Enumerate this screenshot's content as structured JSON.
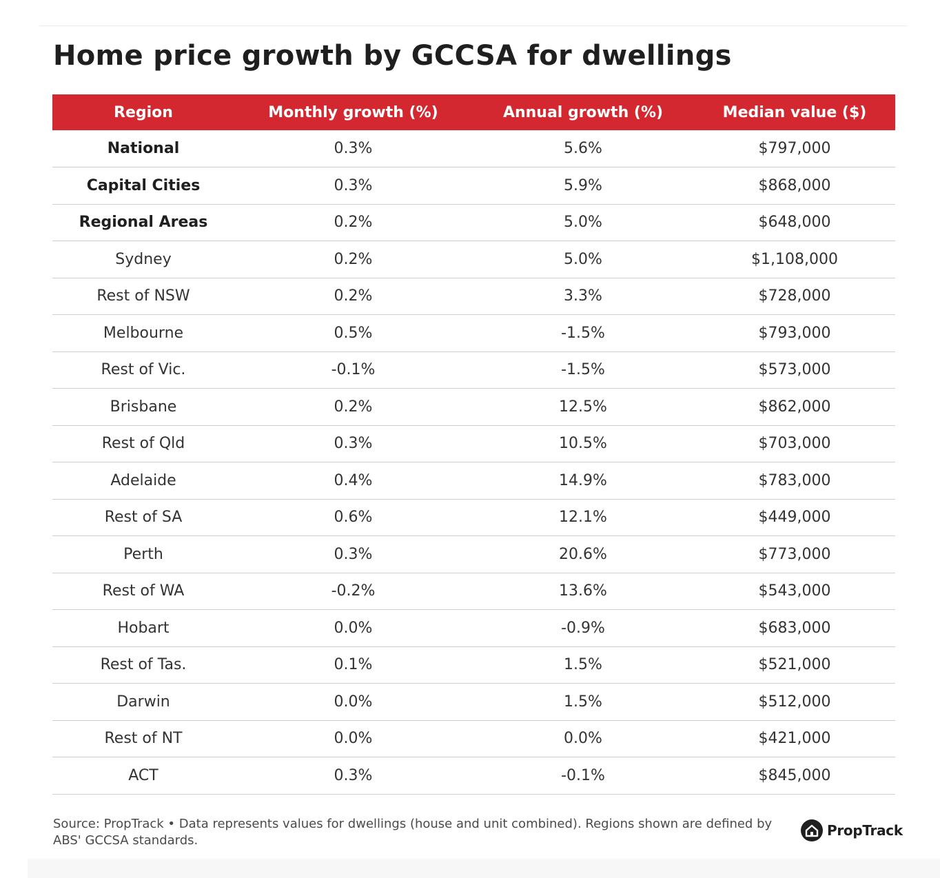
{
  "title": "Home price growth by GCCSA for dwellings",
  "chart_data": {
    "type": "table",
    "title": "Home price growth by GCCSA for dwellings",
    "columns": [
      "Region",
      "Monthly growth (%)",
      "Annual growth (%)",
      "Median value ($)"
    ],
    "rows": [
      {
        "region": "National",
        "monthly": "0.3%",
        "annual": "5.6%",
        "median": "$797,000",
        "bold": true
      },
      {
        "region": "Capital Cities",
        "monthly": "0.3%",
        "annual": "5.9%",
        "median": "$868,000",
        "bold": true
      },
      {
        "region": "Regional Areas",
        "monthly": "0.2%",
        "annual": "5.0%",
        "median": "$648,000",
        "bold": true
      },
      {
        "region": "Sydney",
        "monthly": "0.2%",
        "annual": "5.0%",
        "median": "$1,108,000",
        "bold": false
      },
      {
        "region": "Rest of NSW",
        "monthly": "0.2%",
        "annual": "3.3%",
        "median": "$728,000",
        "bold": false
      },
      {
        "region": "Melbourne",
        "monthly": "0.5%",
        "annual": "-1.5%",
        "median": "$793,000",
        "bold": false
      },
      {
        "region": "Rest of Vic.",
        "monthly": "-0.1%",
        "annual": "-1.5%",
        "median": "$573,000",
        "bold": false
      },
      {
        "region": "Brisbane",
        "monthly": "0.2%",
        "annual": "12.5%",
        "median": "$862,000",
        "bold": false
      },
      {
        "region": "Rest of Qld",
        "monthly": "0.3%",
        "annual": "10.5%",
        "median": "$703,000",
        "bold": false
      },
      {
        "region": "Adelaide",
        "monthly": "0.4%",
        "annual": "14.9%",
        "median": "$783,000",
        "bold": false
      },
      {
        "region": "Rest of SA",
        "monthly": "0.6%",
        "annual": "12.1%",
        "median": "$449,000",
        "bold": false
      },
      {
        "region": "Perth",
        "monthly": "0.3%",
        "annual": "20.6%",
        "median": "$773,000",
        "bold": false
      },
      {
        "region": "Rest of WA",
        "monthly": "-0.2%",
        "annual": "13.6%",
        "median": "$543,000",
        "bold": false
      },
      {
        "region": "Hobart",
        "monthly": "0.0%",
        "annual": "-0.9%",
        "median": "$683,000",
        "bold": false
      },
      {
        "region": "Rest of Tas.",
        "monthly": "0.1%",
        "annual": "1.5%",
        "median": "$521,000",
        "bold": false
      },
      {
        "region": "Darwin",
        "monthly": "0.0%",
        "annual": "1.5%",
        "median": "$512,000",
        "bold": false
      },
      {
        "region": "Rest of NT",
        "monthly": "0.0%",
        "annual": "0.0%",
        "median": "$421,000",
        "bold": false
      },
      {
        "region": "ACT",
        "monthly": "0.3%",
        "annual": "-0.1%",
        "median": "$845,000",
        "bold": false
      }
    ]
  },
  "footer": {
    "source_note": "Source: PropTrack • Data represents values for dwellings (house and unit combined). Regions shown are defined by ABS' GCCSA standards.",
    "brand_name": "PropTrack",
    "brand_icon": "house-icon"
  },
  "colors": {
    "header_background": "#d3282f",
    "header_text": "#ffffff",
    "row_divider": "#cfcfcf"
  }
}
